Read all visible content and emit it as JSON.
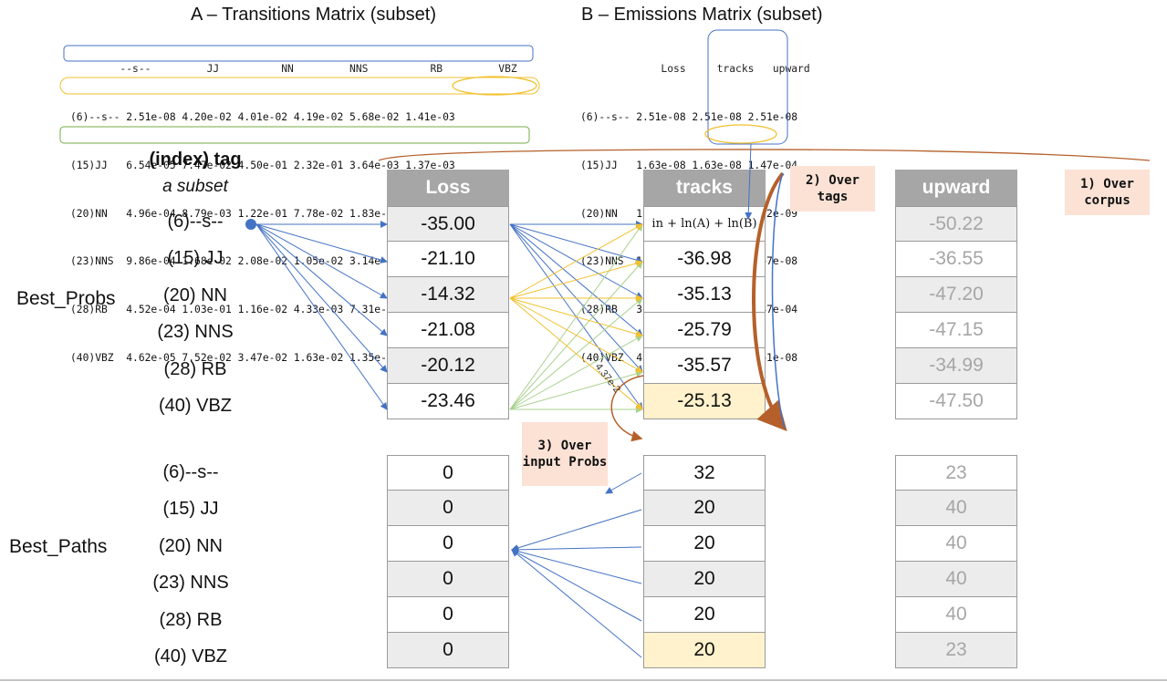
{
  "titles": {
    "transitions": "A – Transitions Matrix (subset)",
    "emissions": "B – Emissions Matrix (subset)"
  },
  "transitions_matrix": {
    "header": "        --s--         JJ          NN         NNS          RB         VBZ",
    "rows": [
      "(6)--s-- 2.51e-08 4.20e-02 4.01e-02 4.19e-02 5.68e-02 1.41e-03",
      "(15)JJ   6.54e-05 7.47e-02 4.50e-01 2.32e-01 3.64e-03 1.37e-03",
      "(20)NN   4.96e-04 8.79e-03 1.22e-01 7.78e-02 1.83e-02 4.37e-02",
      "(23)NNS  9.86e-04 1.68e-02 2.08e-02 1.05e-02 3.14e-02 8.12e-03",
      "(28)RB   4.52e-04 1.03e-01 1.16e-02 4.33e-03 7.31e-02 3.95e-02",
      "(40)VBZ  4.62e-05 7.52e-02 3.47e-02 1.63e-02 1.35e-01 9.23e-04"
    ]
  },
  "emissions_matrix": {
    "header": "             Loss     tracks   upward",
    "rows": [
      "(6)--s-- 2.51e-08 2.51e-08 2.51e-08",
      "(15)JJ   1.63e-08 1.63e-08 1.47e-04",
      "(20)NN   1.50e-05 7.52e-09 7.52e-09",
      "(23)NNS  1.67e-08 1.34e-04 1.67e-08",
      "(28)RB   3.23e-08 3.23e-08 3.87e-04",
      "(40)VBZ  4.61e-08 4.61e-04 4.61e-08"
    ]
  },
  "tag_column": {
    "header": "(index) tag",
    "subheader": "a subset",
    "tags": [
      "(6)--s--",
      "(15) JJ",
      "(20) NN",
      "(23) NNS",
      "(28) RB",
      "(40) VBZ"
    ]
  },
  "sections": {
    "best_probs": "Best_Probs",
    "best_paths": "Best_Paths"
  },
  "columns": [
    {
      "word": "Loss",
      "probs": [
        "-35.00",
        "-21.10",
        "-14.32",
        "-21.08",
        "-20.12",
        "-23.46"
      ],
      "paths": [
        "0",
        "0",
        "0",
        "0",
        "0",
        "0"
      ]
    },
    {
      "word": "tracks",
      "probs": [
        "in + ln(A) + ln(B)",
        "-36.98",
        "-35.13",
        "-25.79",
        "-35.57",
        "-25.13"
      ],
      "paths": [
        "32",
        "20",
        "20",
        "20",
        "20",
        "20"
      ]
    },
    {
      "word": "upward",
      "probs": [
        "-50.22",
        "-36.55",
        "-47.20",
        "-47.15",
        "-34.99",
        "-47.50"
      ],
      "paths": [
        "23",
        "40",
        "40",
        "40",
        "40",
        "23"
      ]
    }
  ],
  "notes": {
    "over_corpus": "1) Over corpus",
    "over_tags": "2) Over tags",
    "over_input": "3) Over input Probs",
    "edge_label": "4.37e-2"
  },
  "colors": {
    "header_gray": "#a6a6a6",
    "highlight": "#fff2cc",
    "blue_arrow": "#4472c4",
    "yellow_arrow": "#f2c12e",
    "green_arrow": "#a9d18e",
    "brown_arrow": "#b5602a"
  }
}
